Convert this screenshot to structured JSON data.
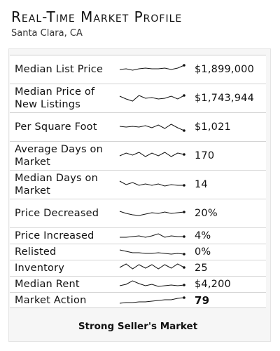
{
  "header": {
    "title": "Real-Time Market Profile",
    "location": "Santa Clara, CA"
  },
  "metrics": [
    {
      "label": "Median List Price",
      "value": "$1,899,000",
      "trend": [
        9,
        10,
        8,
        10,
        11,
        10,
        10,
        11,
        9,
        11,
        15
      ]
    },
    {
      "label": "Median Price of New Listings",
      "value": "$1,743,944",
      "trend": [
        12,
        8,
        5,
        13,
        9,
        10,
        8,
        9,
        12,
        8,
        13
      ]
    },
    {
      "label": "Per Square Foot",
      "value": "$1,021",
      "trend": [
        10,
        9,
        10,
        9,
        11,
        8,
        12,
        7,
        13,
        8,
        4
      ]
    },
    {
      "label": "Average Days on Market",
      "value": "170",
      "trend": [
        9,
        13,
        10,
        14,
        8,
        13,
        9,
        14,
        8,
        13,
        11
      ]
    },
    {
      "label": "Median Days on Market",
      "value": "14",
      "trend": [
        14,
        9,
        12,
        8,
        10,
        8,
        10,
        7,
        9,
        8,
        8
      ]
    },
    {
      "label": "Price Decreased",
      "value": "20%",
      "trend": [
        12,
        9,
        7,
        6,
        8,
        10,
        9,
        11,
        9,
        10,
        11
      ]
    },
    {
      "label": "Price Increased",
      "value": "4%",
      "trend": [
        7,
        7,
        8,
        9,
        7,
        9,
        12,
        7,
        9,
        8,
        8
      ]
    },
    {
      "label": "Relisted",
      "value": "0%",
      "trend": [
        12,
        10,
        8,
        8,
        7,
        7,
        8,
        7,
        6,
        7,
        6
      ]
    },
    {
      "label": "Inventory",
      "value": "25",
      "trend": [
        10,
        15,
        8,
        14,
        9,
        14,
        8,
        14,
        9,
        15,
        10
      ]
    },
    {
      "label": "Median Rent",
      "value": "$4,200",
      "trend": [
        7,
        9,
        14,
        10,
        7,
        9,
        6,
        7,
        8,
        7,
        8
      ]
    },
    {
      "label": "Market Action",
      "value": "79",
      "bold": true,
      "trend": [
        5,
        6,
        6,
        7,
        7,
        8,
        9,
        10,
        10,
        12,
        13
      ]
    }
  ],
  "footer": {
    "summary": "Strong Seller's Market"
  },
  "colors": {
    "sparkline": "#111111",
    "divider": "#d4d4d4",
    "panel": "#f6f6f6"
  }
}
